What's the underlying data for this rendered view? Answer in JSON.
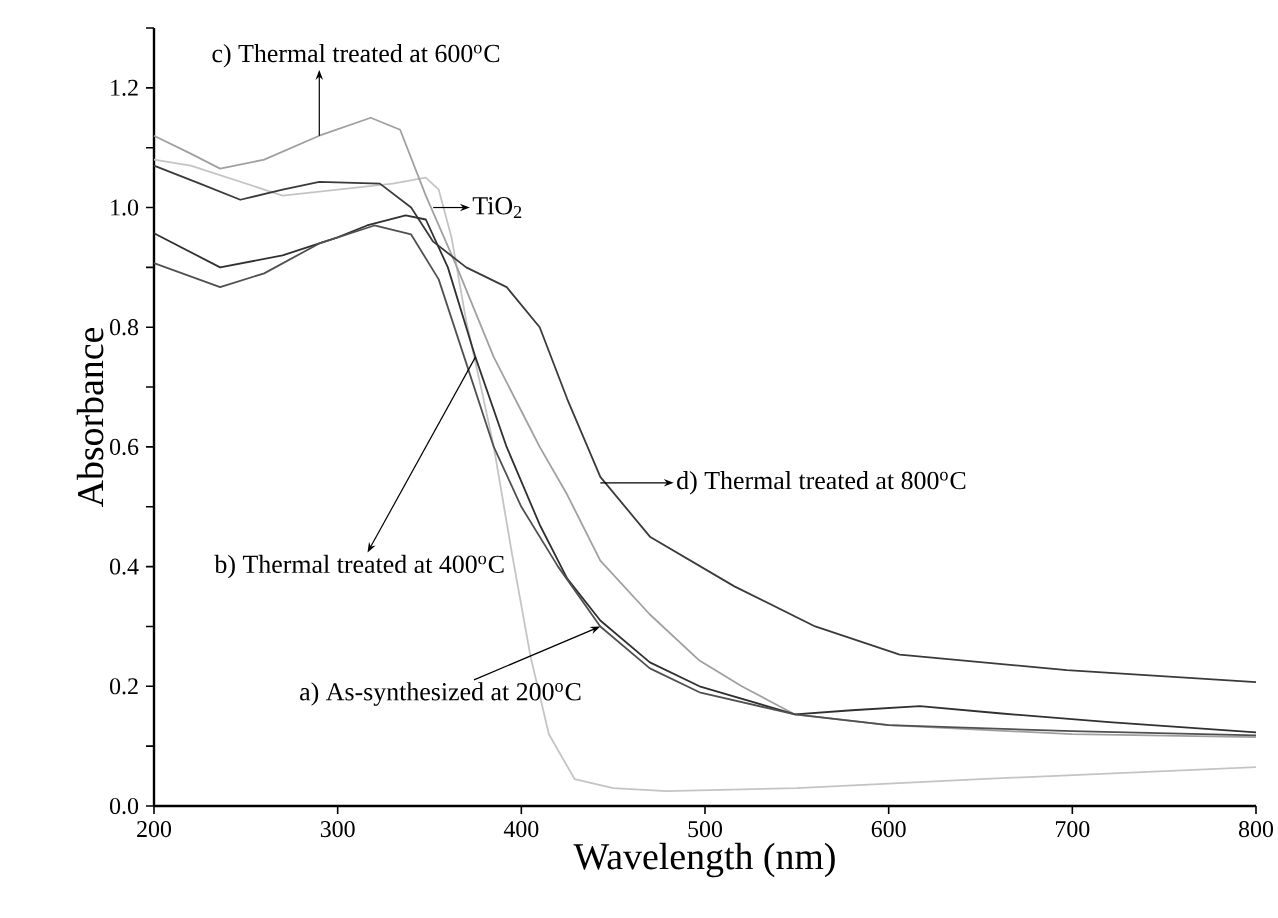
{
  "chart_data": {
    "type": "line",
    "xlabel": "Wavelength (nm)",
    "ylabel": "Absorbance",
    "xlim": [
      200,
      800
    ],
    "ylim": [
      0,
      1.3
    ],
    "xticks": [
      200,
      300,
      400,
      500,
      600,
      700,
      800
    ],
    "yticks": [
      {
        "value": 0,
        "label": "0.0"
      },
      {
        "value": 0.1,
        "label": null
      },
      {
        "value": 0.2,
        "label": "0.2"
      },
      {
        "value": 0.3,
        "label": null
      },
      {
        "value": 0.4,
        "label": "0.4"
      },
      {
        "value": 0.5,
        "label": null
      },
      {
        "value": 0.6,
        "label": "0.6"
      },
      {
        "value": 0.7,
        "label": null
      },
      {
        "value": 0.8,
        "label": "0.8"
      },
      {
        "value": 0.9,
        "label": null
      },
      {
        "value": 1.0,
        "label": "1.0"
      },
      {
        "value": 1.1,
        "label": null
      },
      {
        "value": 1.2,
        "label": "1.2"
      },
      {
        "value": 1.3,
        "label": null
      }
    ],
    "grid": false,
    "marker": "none",
    "line_style": "solid",
    "series": [
      {
        "color": "#c4c4c4",
        "x": [
          200,
          220,
          240,
          270,
          300,
          330,
          348,
          355,
          362,
          370,
          378,
          385,
          395,
          405,
          415,
          429,
          450,
          479,
          550,
          650,
          800
        ],
        "values": [
          1.08,
          1.07,
          1.05,
          1.02,
          1.03,
          1.04,
          1.05,
          1.03,
          0.95,
          0.81,
          0.7,
          0.6,
          0.42,
          0.25,
          0.12,
          0.045,
          0.03,
          0.025,
          0.03,
          0.045,
          0.065
        ]
      },
      {
        "color": "#a0a0a0",
        "x": [
          200,
          220,
          236,
          260,
          290,
          318,
          334,
          348,
          365,
          385,
          400,
          410,
          425,
          443,
          470,
          497,
          520,
          549,
          600,
          700,
          800
        ],
        "values": [
          1.12,
          1.09,
          1.065,
          1.08,
          1.12,
          1.15,
          1.13,
          1.02,
          0.9,
          0.75,
          0.66,
          0.6,
          0.52,
          0.41,
          0.32,
          0.243,
          0.2,
          0.153,
          0.135,
          0.12,
          0.115
        ]
      },
      {
        "color": "#3a3a3a",
        "x": [
          200,
          225,
          247,
          270,
          290,
          323,
          340,
          352,
          370,
          392,
          410,
          425,
          443,
          470,
          516,
          560,
          606,
          697,
          800
        ],
        "values": [
          1.07,
          1.04,
          1.013,
          1.03,
          1.043,
          1.04,
          1.0,
          0.943,
          0.9,
          0.867,
          0.8,
          0.68,
          0.55,
          0.45,
          0.367,
          0.3,
          0.253,
          0.227,
          0.207
        ]
      },
      {
        "color": "#303030",
        "x": [
          200,
          236,
          270,
          300,
          316,
          337,
          348,
          360,
          375,
          392,
          410,
          425,
          443,
          470,
          497,
          549,
          580,
          617,
          660,
          720,
          800
        ],
        "values": [
          0.957,
          0.9,
          0.92,
          0.95,
          0.97,
          0.987,
          0.98,
          0.9,
          0.75,
          0.6,
          0.47,
          0.38,
          0.31,
          0.24,
          0.2,
          0.153,
          0.16,
          0.167,
          0.155,
          0.14,
          0.123
        ]
      },
      {
        "color": "#505050",
        "x": [
          200,
          236,
          260,
          290,
          320,
          340,
          355,
          370,
          385,
          400,
          420,
          443,
          470,
          497,
          549,
          600,
          700,
          800
        ],
        "values": [
          0.907,
          0.867,
          0.89,
          0.94,
          0.97,
          0.955,
          0.88,
          0.74,
          0.6,
          0.5,
          0.4,
          0.3,
          0.23,
          0.19,
          0.153,
          0.135,
          0.125,
          0.118
        ]
      }
    ],
    "annotations": [
      {
        "text": "c) Thermal treated at 600$^{o}$C",
        "x": 290,
        "y": 1.12
      },
      {
        "text": "TiO$_{2}$",
        "x": 352,
        "y": 1.0
      },
      {
        "text": "d) Thermal treated at 800$^{o}$C",
        "x": 443,
        "y": 0.54
      },
      {
        "text": "b) Thermal treated at 400$^{o}$C",
        "x": 375,
        "y": 0.75
      },
      {
        "text": "a) As-synthesized at 200$^{o}$C",
        "x": 443,
        "y": 0.3
      }
    ]
  }
}
